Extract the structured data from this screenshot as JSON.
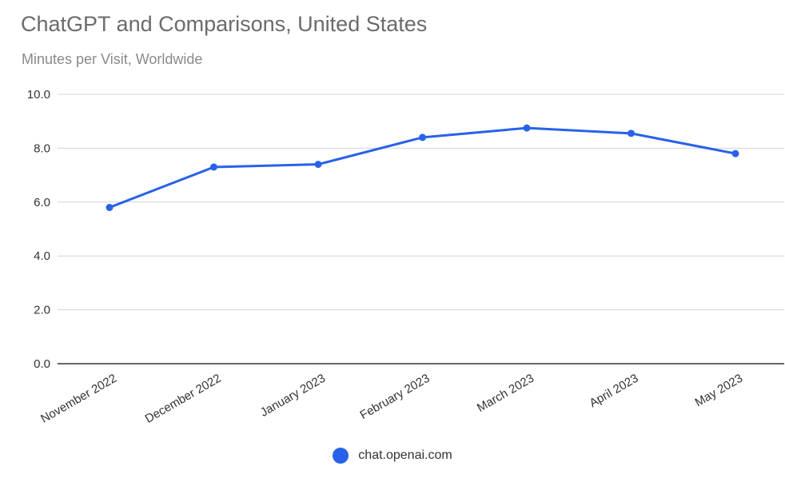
{
  "chart_data": {
    "type": "line",
    "title": "ChatGPT and Comparisons, United States",
    "subtitle": "Minutes per Visit, Worldwide",
    "categories": [
      "November 2022",
      "December 2022",
      "January 2023",
      "February 2023",
      "March 2023",
      "April 2023",
      "May 2023"
    ],
    "series": [
      {
        "name": "chat.openai.com",
        "values": [
          5.8,
          7.3,
          7.4,
          8.4,
          8.75,
          8.55,
          7.8
        ],
        "color": "#2962e8"
      }
    ],
    "y_ticks": [
      "0.0",
      "2.0",
      "4.0",
      "6.0",
      "8.0",
      "10.0"
    ],
    "ylim": [
      0,
      10
    ],
    "grid": true,
    "legend_position": "bottom"
  }
}
